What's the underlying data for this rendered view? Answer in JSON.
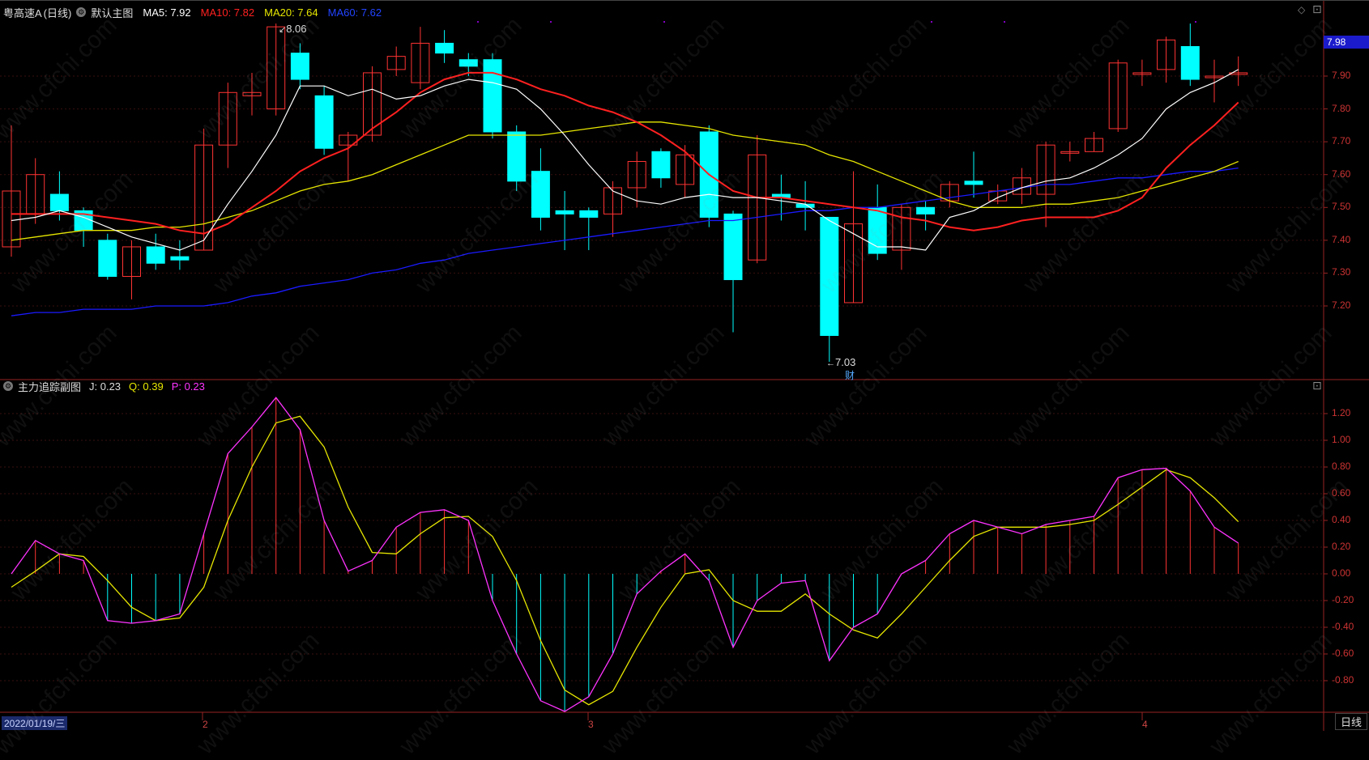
{
  "main_panel": {
    "stock_name": "粤高速A",
    "period": "(日线)",
    "chart_name": "默认主图",
    "ma5_label": "MA5: 7.92",
    "ma10_label": "MA10: 7.82",
    "ma20_label": "MA20: 7.64",
    "ma60_label": "MA60: 7.62",
    "high_marker": "8.06",
    "low_marker": "7.03",
    "event_marker": "财",
    "last_price_tag": "7.98",
    "y_ticks": [
      "7.90",
      "7.80",
      "7.70",
      "7.60",
      "7.50",
      "7.40",
      "7.30",
      "7.20"
    ]
  },
  "sub_panel": {
    "chart_name": "主力追踪副图",
    "j_label": "J: 0.23",
    "q_label": "Q: 0.39",
    "p_label": "P: 0.23",
    "y_ticks": [
      "1.20",
      "1.00",
      "0.80",
      "0.60",
      "0.40",
      "0.20",
      "0.00",
      "-0.20",
      "-0.40",
      "-0.60",
      "-0.80"
    ]
  },
  "x_axis": {
    "date_label": "2022/01/19/三",
    "month_labels": [
      "2",
      "3",
      "4"
    ],
    "period_tab": "日线"
  },
  "watermark": "www.cfchi.com",
  "colors": {
    "background": "#000000",
    "up": "#ff3333",
    "down": "#00ffff",
    "ma5": "#ffffff",
    "ma10": "#ff2020",
    "ma20": "#e6e600",
    "ma60": "#1a1aff",
    "p_line": "#ff33ff",
    "q_line": "#e6e600"
  },
  "chart_data": [
    {
      "type": "candlestick",
      "ylim": [
        7.0,
        8.1
      ],
      "candles": [
        [
          7.38,
          7.55,
          7.35,
          7.75
        ],
        [
          7.48,
          7.6,
          7.45,
          7.65
        ],
        [
          7.54,
          7.49,
          7.46,
          7.61
        ],
        [
          7.49,
          7.43,
          7.38,
          7.5
        ],
        [
          7.4,
          7.29,
          7.28,
          7.42
        ],
        [
          7.29,
          7.38,
          7.22,
          7.4
        ],
        [
          7.38,
          7.33,
          7.31,
          7.42
        ],
        [
          7.35,
          7.34,
          7.31,
          7.4
        ],
        [
          7.37,
          7.69,
          7.37,
          7.74
        ],
        [
          7.69,
          7.85,
          7.62,
          7.88
        ],
        [
          7.84,
          7.85,
          7.78,
          7.91
        ],
        [
          7.8,
          8.05,
          7.78,
          8.06
        ],
        [
          7.97,
          7.89,
          7.86,
          8.0
        ],
        [
          7.84,
          7.68,
          7.66,
          7.87
        ],
        [
          7.69,
          7.72,
          7.58,
          7.73
        ],
        [
          7.72,
          7.91,
          7.7,
          7.93
        ],
        [
          7.92,
          7.96,
          7.9,
          7.99
        ],
        [
          7.88,
          8.0,
          7.86,
          8.05
        ],
        [
          8.0,
          7.97,
          7.94,
          8.04
        ],
        [
          7.95,
          7.93,
          7.9,
          7.97
        ],
        [
          7.95,
          7.73,
          7.71,
          7.97
        ],
        [
          7.73,
          7.58,
          7.55,
          7.75
        ],
        [
          7.61,
          7.47,
          7.43,
          7.68
        ],
        [
          7.49,
          7.48,
          7.37,
          7.55
        ],
        [
          7.49,
          7.47,
          7.37,
          7.5
        ],
        [
          7.48,
          7.56,
          7.41,
          7.58
        ],
        [
          7.56,
          7.64,
          7.5,
          7.67
        ],
        [
          7.67,
          7.59,
          7.56,
          7.68
        ],
        [
          7.57,
          7.66,
          7.53,
          7.69
        ],
        [
          7.73,
          7.47,
          7.44,
          7.75
        ],
        [
          7.48,
          7.28,
          7.12,
          7.49
        ],
        [
          7.34,
          7.66,
          7.33,
          7.72
        ],
        [
          7.54,
          7.53,
          7.46,
          7.6
        ],
        [
          7.51,
          7.5,
          7.43,
          7.58
        ],
        [
          7.47,
          7.11,
          7.03,
          7.47
        ],
        [
          7.21,
          7.45,
          7.21,
          7.61
        ],
        [
          7.5,
          7.36,
          7.34,
          7.57
        ],
        [
          7.37,
          7.5,
          7.31,
          7.51
        ],
        [
          7.5,
          7.48,
          7.43,
          7.52
        ],
        [
          7.52,
          7.57,
          7.5,
          7.58
        ],
        [
          7.58,
          7.57,
          7.53,
          7.67
        ],
        [
          7.52,
          7.55,
          7.51,
          7.57
        ],
        [
          7.54,
          7.59,
          7.51,
          7.62
        ],
        [
          7.54,
          7.69,
          7.44,
          7.7
        ],
        [
          7.67,
          7.67,
          7.64,
          7.7
        ],
        [
          7.67,
          7.71,
          7.67,
          7.73
        ],
        [
          7.74,
          7.94,
          7.73,
          7.95
        ],
        [
          7.91,
          7.91,
          7.87,
          7.95
        ],
        [
          7.92,
          8.01,
          7.88,
          8.02
        ],
        [
          7.99,
          7.89,
          7.87,
          8.06
        ],
        [
          7.9,
          7.9,
          7.82,
          7.95
        ],
        [
          7.91,
          7.91,
          7.87,
          7.96
        ]
      ],
      "ma5": [
        7.46,
        7.47,
        7.49,
        7.47,
        7.44,
        7.41,
        7.39,
        7.37,
        7.4,
        7.51,
        7.61,
        7.72,
        7.87,
        7.87,
        7.84,
        7.86,
        7.83,
        7.84,
        7.87,
        7.89,
        7.88,
        7.86,
        7.8,
        7.72,
        7.63,
        7.55,
        7.52,
        7.51,
        7.53,
        7.54,
        7.53,
        7.53,
        7.52,
        7.51,
        7.46,
        7.42,
        7.38,
        7.38,
        7.37,
        7.47,
        7.49,
        7.53,
        7.56,
        7.58,
        7.59,
        7.62,
        7.66,
        7.71,
        7.8,
        7.85,
        7.88,
        7.92
      ],
      "ma10": [
        7.48,
        7.48,
        7.48,
        7.48,
        7.47,
        7.46,
        7.45,
        7.43,
        7.42,
        7.45,
        7.5,
        7.55,
        7.61,
        7.65,
        7.68,
        7.74,
        7.79,
        7.85,
        7.89,
        7.91,
        7.91,
        7.89,
        7.86,
        7.84,
        7.81,
        7.79,
        7.76,
        7.72,
        7.67,
        7.6,
        7.55,
        7.53,
        7.53,
        7.52,
        7.51,
        7.5,
        7.49,
        7.47,
        7.46,
        7.44,
        7.43,
        7.44,
        7.46,
        7.47,
        7.47,
        7.47,
        7.49,
        7.53,
        7.62,
        7.69,
        7.75,
        7.82
      ],
      "ma20": [
        7.4,
        7.41,
        7.42,
        7.43,
        7.43,
        7.43,
        7.44,
        7.44,
        7.45,
        7.47,
        7.49,
        7.52,
        7.55,
        7.57,
        7.58,
        7.6,
        7.63,
        7.66,
        7.69,
        7.72,
        7.72,
        7.72,
        7.72,
        7.73,
        7.74,
        7.75,
        7.76,
        7.76,
        7.75,
        7.74,
        7.72,
        7.71,
        7.7,
        7.69,
        7.66,
        7.64,
        7.61,
        7.58,
        7.55,
        7.52,
        7.5,
        7.5,
        7.5,
        7.51,
        7.51,
        7.52,
        7.53,
        7.55,
        7.57,
        7.59,
        7.61,
        7.64
      ],
      "ma60": [
        7.17,
        7.18,
        7.18,
        7.19,
        7.19,
        7.19,
        7.2,
        7.2,
        7.2,
        7.21,
        7.23,
        7.24,
        7.26,
        7.27,
        7.28,
        7.3,
        7.31,
        7.33,
        7.34,
        7.36,
        7.37,
        7.38,
        7.39,
        7.4,
        7.41,
        7.42,
        7.43,
        7.44,
        7.45,
        7.46,
        7.46,
        7.47,
        7.48,
        7.49,
        7.49,
        7.5,
        7.5,
        7.51,
        7.52,
        7.53,
        7.54,
        7.55,
        7.56,
        7.57,
        7.57,
        7.58,
        7.59,
        7.59,
        7.6,
        7.61,
        7.61,
        7.62
      ]
    },
    {
      "type": "line",
      "ylim": [
        -1.0,
        1.4
      ],
      "p_values": [
        0.0,
        0.25,
        0.15,
        0.1,
        -0.35,
        -0.37,
        -0.35,
        -0.3,
        0.3,
        0.9,
        1.1,
        1.32,
        1.08,
        0.4,
        0.02,
        0.1,
        0.35,
        0.46,
        0.48,
        0.4,
        -0.2,
        -0.6,
        -0.95,
        -1.03,
        -0.92,
        -0.6,
        -0.15,
        0.02,
        0.15,
        -0.05,
        -0.55,
        -0.2,
        -0.07,
        -0.05,
        -0.65,
        -0.4,
        -0.3,
        0.0,
        0.1,
        0.3,
        0.4,
        0.35,
        0.3,
        0.37,
        0.4,
        0.43,
        0.72,
        0.78,
        0.79,
        0.62,
        0.35,
        0.23
      ],
      "q_values": [
        -0.1,
        0.02,
        0.15,
        0.13,
        -0.05,
        -0.25,
        -0.35,
        -0.33,
        -0.1,
        0.4,
        0.8,
        1.13,
        1.18,
        0.95,
        0.5,
        0.16,
        0.15,
        0.3,
        0.42,
        0.43,
        0.28,
        -0.05,
        -0.5,
        -0.87,
        -0.98,
        -0.88,
        -0.55,
        -0.25,
        0.0,
        0.03,
        -0.2,
        -0.28,
        -0.28,
        -0.15,
        -0.3,
        -0.42,
        -0.48,
        -0.3,
        -0.1,
        0.1,
        0.28,
        0.35,
        0.35,
        0.35,
        0.37,
        0.4,
        0.52,
        0.65,
        0.78,
        0.72,
        0.57,
        0.39
      ],
      "j_label": "J: 0.23",
      "q_label": "Q: 0.39",
      "p_label": "P: 0.23"
    }
  ]
}
